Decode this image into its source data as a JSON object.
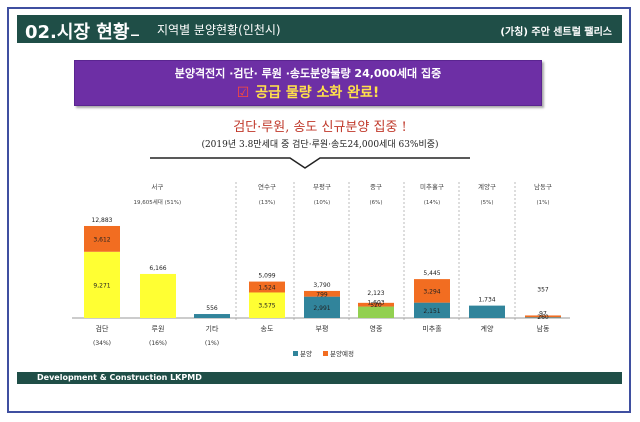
{
  "header": {
    "section_title": "02.시장 현황",
    "separator": "_",
    "subtitle": "지역별 분양현황(인천시)",
    "project": "(가칭) 주안 센트럴 팰리스"
  },
  "banner": {
    "line1": "분양격전지 ·검단· 루원 ·송도분양물량 24,000세대 집중",
    "check_icon": "☑",
    "line2": "공급 물량 소화 완료!"
  },
  "headline": {
    "title": "검단·루원, 송도 신규분양 집중 !",
    "subtitle": "(2019년 3.8만세대 중 검단·루원·송도24,000세대 63%비중)"
  },
  "footer": {
    "text": "Development & Construction LKPMD"
  },
  "colors": {
    "header": "#1f4e47",
    "banner": "#6d2fa5",
    "title": "#c0392b",
    "sold": "#31849b",
    "planned": "#f26d21",
    "yellow": "#ffff33",
    "green": "#92d050"
  },
  "chart_data": {
    "type": "bar",
    "stacked": true,
    "categories": [
      "검단",
      "루원",
      "기타",
      "송도",
      "부평",
      "영종",
      "미추홀",
      "계양",
      "남동"
    ],
    "category_notes": [
      "(34%)",
      "(16%)",
      "(1%)",
      "",
      "",
      "",
      "",
      "",
      ""
    ],
    "groups": [
      {
        "label": "서구",
        "share": "19,605세대 (51%)",
        "categories": [
          "검단",
          "루원",
          "기타"
        ]
      },
      {
        "label": "연수구",
        "share": "(13%)",
        "categories": [
          "송도"
        ]
      },
      {
        "label": "부평구",
        "share": "(10%)",
        "categories": [
          "부평"
        ]
      },
      {
        "label": "중구",
        "share": "(6%)",
        "categories": [
          "영종"
        ]
      },
      {
        "label": "미추홀구",
        "share": "(14%)",
        "categories": [
          "미추홀"
        ]
      },
      {
        "label": "계양구",
        "share": "(5%)",
        "categories": [
          "계양"
        ]
      },
      {
        "label": "남동구",
        "share": "(1%)",
        "categories": [
          "남동"
        ]
      }
    ],
    "series": [
      {
        "name": "분양",
        "color": "#31849b",
        "values": [
          9271,
          6166,
          556,
          3575,
          2991,
          1603,
          2151,
          1734,
          97
        ]
      },
      {
        "name": "분양예정",
        "color": "#f26d21",
        "values": [
          3612,
          0,
          0,
          1524,
          799,
          520,
          3294,
          0,
          260
        ]
      }
    ],
    "bottom_fill_colors": [
      "#ffff33",
      "#ffff33",
      "#31849b",
      "#ffff33",
      "#31849b",
      "#92d050",
      "#31849b",
      "#31849b",
      "#31849b"
    ],
    "bottom_labels": [
      "9,271",
      "",
      "",
      "3,575",
      "2,991",
      "1,603",
      "2,151",
      "",
      "97"
    ],
    "top_labels": [
      "3,612",
      "",
      "",
      "1,524",
      "799",
      "520",
      "3,294",
      "",
      "260"
    ],
    "totals": [
      "12,883",
      "6,166",
      "556",
      "5,099",
      "3,790",
      "2,123",
      "5,445",
      "1,734",
      "357"
    ],
    "ylim": [
      0,
      14000
    ],
    "legend": "bottom-center"
  }
}
